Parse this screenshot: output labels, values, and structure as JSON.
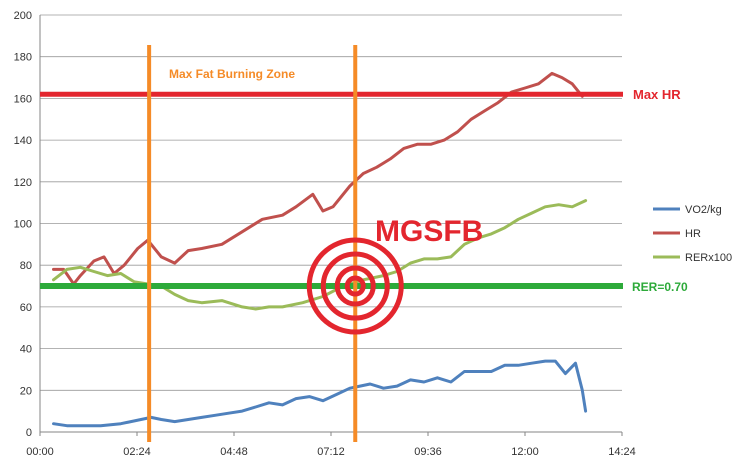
{
  "chart_data": {
    "type": "line",
    "x_unit": "mm:ss",
    "xlim": [
      "00:00",
      "14:24"
    ],
    "ylim": [
      0,
      200
    ],
    "x_ticks": [
      "00:00",
      "02:24",
      "04:48",
      "07:12",
      "09:36",
      "12:00",
      "14:24"
    ],
    "y_ticks": [
      0,
      20,
      40,
      60,
      80,
      100,
      120,
      140,
      160,
      180,
      200
    ],
    "grid": "horizontal",
    "legend_position": "right",
    "series": [
      {
        "name": "VO2/kg",
        "color": "#4F81BD",
        "points": [
          [
            "00:20",
            4
          ],
          [
            "00:40",
            3
          ],
          [
            "01:00",
            3
          ],
          [
            "01:30",
            3
          ],
          [
            "02:00",
            4
          ],
          [
            "02:30",
            6
          ],
          [
            "02:45",
            7
          ],
          [
            "03:00",
            6
          ],
          [
            "03:20",
            5
          ],
          [
            "03:40",
            6
          ],
          [
            "04:00",
            7
          ],
          [
            "04:20",
            8
          ],
          [
            "04:40",
            9
          ],
          [
            "05:00",
            10
          ],
          [
            "05:20",
            12
          ],
          [
            "05:40",
            14
          ],
          [
            "06:00",
            13
          ],
          [
            "06:20",
            16
          ],
          [
            "06:40",
            17
          ],
          [
            "07:00",
            15
          ],
          [
            "07:20",
            18
          ],
          [
            "07:40",
            21
          ],
          [
            "07:55",
            22
          ],
          [
            "08:10",
            23
          ],
          [
            "08:30",
            21
          ],
          [
            "08:50",
            22
          ],
          [
            "09:10",
            25
          ],
          [
            "09:30",
            24
          ],
          [
            "09:50",
            26
          ],
          [
            "10:10",
            24
          ],
          [
            "10:30",
            29
          ],
          [
            "10:50",
            29
          ],
          [
            "11:10",
            29
          ],
          [
            "11:30",
            32
          ],
          [
            "11:50",
            32
          ],
          [
            "12:10",
            33
          ],
          [
            "12:30",
            34
          ],
          [
            "12:45",
            34
          ],
          [
            "13:00",
            28
          ],
          [
            "13:15",
            33
          ],
          [
            "13:25",
            20
          ],
          [
            "13:30",
            10
          ]
        ]
      },
      {
        "name": "HR",
        "color": "#C0504D",
        "points": [
          [
            "00:20",
            78
          ],
          [
            "00:35",
            78
          ],
          [
            "00:50",
            71
          ],
          [
            "01:00",
            75
          ],
          [
            "01:20",
            82
          ],
          [
            "01:35",
            84
          ],
          [
            "01:50",
            76
          ],
          [
            "02:05",
            80
          ],
          [
            "02:25",
            88
          ],
          [
            "02:40",
            92
          ],
          [
            "03:00",
            84
          ],
          [
            "03:20",
            81
          ],
          [
            "03:40",
            87
          ],
          [
            "04:00",
            88
          ],
          [
            "04:30",
            90
          ],
          [
            "05:00",
            96
          ],
          [
            "05:30",
            102
          ],
          [
            "06:00",
            104
          ],
          [
            "06:20",
            108
          ],
          [
            "06:45",
            114
          ],
          [
            "07:00",
            106
          ],
          [
            "07:15",
            108
          ],
          [
            "07:40",
            118
          ],
          [
            "08:00",
            124
          ],
          [
            "08:20",
            127
          ],
          [
            "08:40",
            131
          ],
          [
            "09:00",
            136
          ],
          [
            "09:20",
            138
          ],
          [
            "09:40",
            138
          ],
          [
            "10:00",
            140
          ],
          [
            "10:20",
            144
          ],
          [
            "10:40",
            150
          ],
          [
            "11:00",
            154
          ],
          [
            "11:20",
            158
          ],
          [
            "11:40",
            163
          ],
          [
            "12:00",
            165
          ],
          [
            "12:20",
            167
          ],
          [
            "12:40",
            172
          ],
          [
            "12:55",
            170
          ],
          [
            "13:10",
            167
          ],
          [
            "13:25",
            161
          ]
        ]
      },
      {
        "name": "RERx100",
        "color": "#9BBB59",
        "points": [
          [
            "00:20",
            73
          ],
          [
            "00:40",
            78
          ],
          [
            "01:00",
            79
          ],
          [
            "01:20",
            77
          ],
          [
            "01:40",
            75
          ],
          [
            "02:00",
            76
          ],
          [
            "02:20",
            72
          ],
          [
            "02:40",
            71
          ],
          [
            "03:00",
            70
          ],
          [
            "03:20",
            66
          ],
          [
            "03:40",
            63
          ],
          [
            "04:00",
            62
          ],
          [
            "04:30",
            63
          ],
          [
            "05:00",
            60
          ],
          [
            "05:20",
            59
          ],
          [
            "05:40",
            60
          ],
          [
            "06:00",
            60
          ],
          [
            "06:30",
            62
          ],
          [
            "07:00",
            65
          ],
          [
            "07:30",
            70
          ],
          [
            "08:00",
            73
          ],
          [
            "08:30",
            75
          ],
          [
            "08:50",
            77
          ],
          [
            "09:10",
            81
          ],
          [
            "09:30",
            83
          ],
          [
            "09:50",
            83
          ],
          [
            "10:10",
            84
          ],
          [
            "10:30",
            90
          ],
          [
            "10:50",
            93
          ],
          [
            "11:10",
            95
          ],
          [
            "11:30",
            98
          ],
          [
            "11:50",
            102
          ],
          [
            "12:10",
            105
          ],
          [
            "12:30",
            108
          ],
          [
            "12:50",
            109
          ],
          [
            "13:10",
            108
          ],
          [
            "13:30",
            111
          ]
        ]
      }
    ],
    "annotations": {
      "max_hr": {
        "label": "Max HR",
        "value": 162,
        "color": "#E3262E"
      },
      "rer": {
        "label": "RER=0.70",
        "value": 70,
        "color": "#2DAA3A"
      },
      "zone": {
        "label": "Max Fat Burning Zone",
        "start": "02:42",
        "end": "07:48",
        "color": "#F58B27"
      },
      "target": {
        "label": "MGSFB",
        "x": "07:48",
        "y": 70,
        "color": "#E3262E"
      }
    }
  }
}
